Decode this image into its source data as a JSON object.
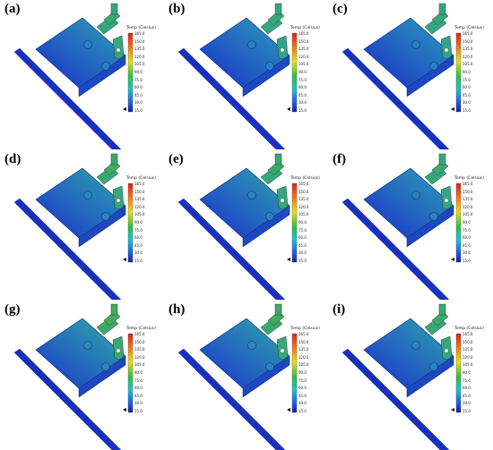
{
  "figure": {
    "colorbar": {
      "title": "Temp (Celsius)",
      "ticks": [
        "165.0",
        "150.0",
        "135.0",
        "120.0",
        "105.0",
        "90.0",
        "75.0",
        "60.0",
        "45.0",
        "30.0",
        "15.0"
      ]
    },
    "panels": [
      {
        "label": "(a)",
        "warmth": 0.35
      },
      {
        "label": "(b)",
        "warmth": 0.3
      },
      {
        "label": "(c)",
        "warmth": 0.28
      },
      {
        "label": "(d)",
        "warmth": 0.48
      },
      {
        "label": "(e)",
        "warmth": 0.42
      },
      {
        "label": "(f)",
        "warmth": 0.38
      },
      {
        "label": "(g)",
        "warmth": 0.62
      },
      {
        "label": "(h)",
        "warmth": 0.52
      },
      {
        "label": "(i)",
        "warmth": 0.45
      }
    ]
  }
}
